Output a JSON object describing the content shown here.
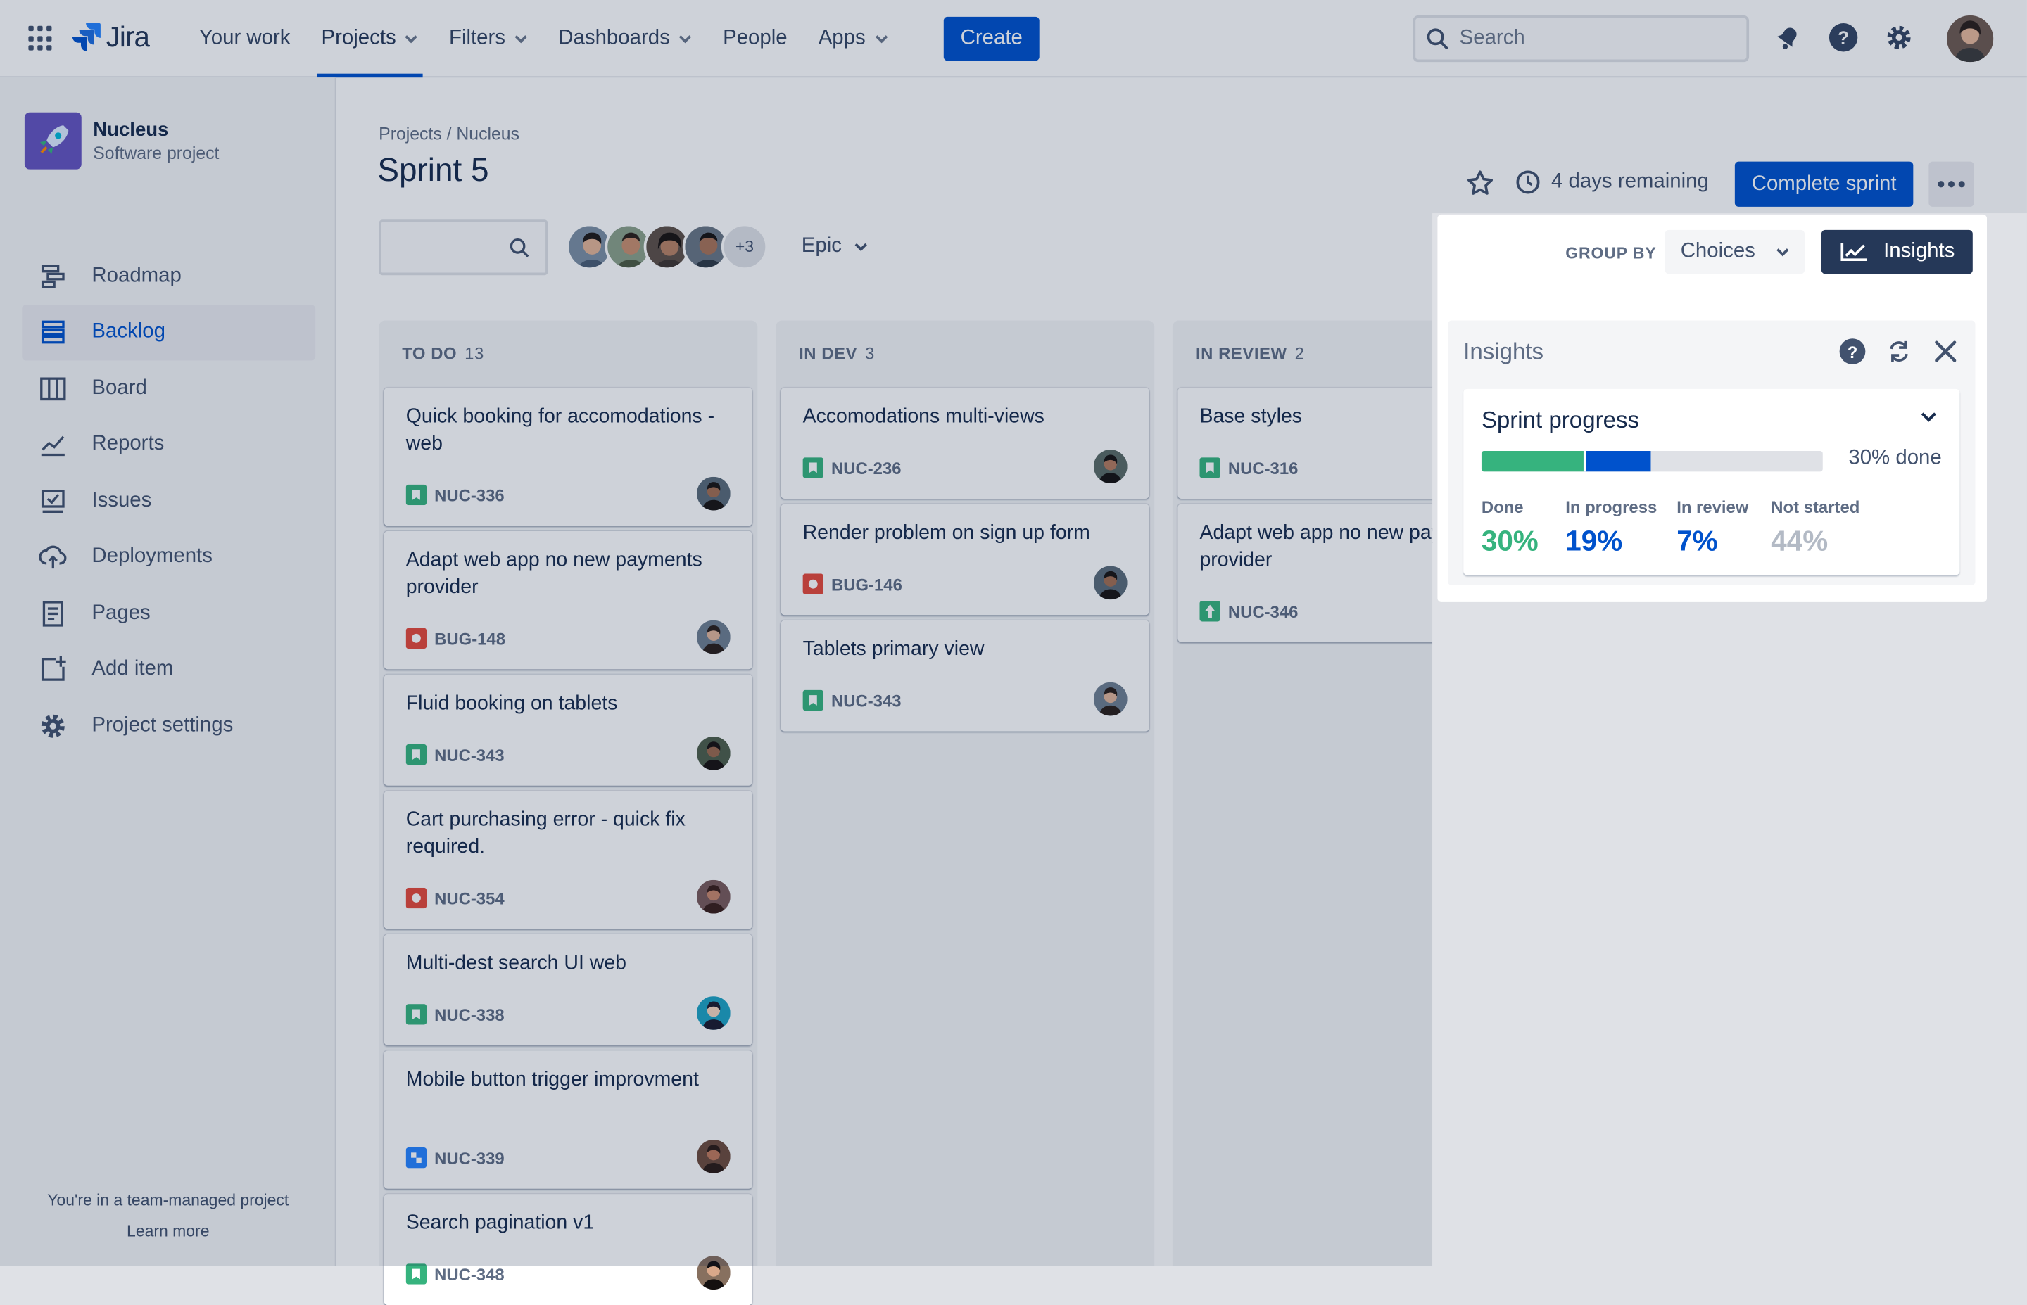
{
  "nav": {
    "logo": "Jira",
    "items": [
      {
        "label": "Your work",
        "dropdown": false,
        "active": false
      },
      {
        "label": "Projects",
        "dropdown": true,
        "active": true
      },
      {
        "label": "Filters",
        "dropdown": true,
        "active": false
      },
      {
        "label": "Dashboards",
        "dropdown": true,
        "active": false
      },
      {
        "label": "People",
        "dropdown": false,
        "active": false
      },
      {
        "label": "Apps",
        "dropdown": true,
        "active": false
      }
    ],
    "create_label": "Create",
    "search_placeholder": "Search",
    "icons": [
      "app-switcher-icon",
      "notifications-icon",
      "help-icon",
      "settings-icon",
      "profile-avatar"
    ]
  },
  "sidebar": {
    "project_name": "Nucleus",
    "project_type": "Software project",
    "items": [
      {
        "label": "Roadmap",
        "icon": "roadmap-icon"
      },
      {
        "label": "Backlog",
        "icon": "backlog-icon",
        "active": true
      },
      {
        "label": "Board",
        "icon": "board-icon"
      },
      {
        "label": "Reports",
        "icon": "reports-icon"
      },
      {
        "label": "Issues",
        "icon": "issues-icon"
      },
      {
        "label": "Deployments",
        "icon": "deployments-icon"
      },
      {
        "label": "Pages",
        "icon": "pages-icon"
      },
      {
        "label": "Add item",
        "icon": "add-item-icon"
      },
      {
        "label": "Project settings",
        "icon": "settings-icon"
      }
    ],
    "footer_text": "You're in a team-managed project",
    "footer_link": "Learn more"
  },
  "main": {
    "breadcrumb": "Projects / Nucleus",
    "title": "Sprint 5",
    "avatars_more": "+3",
    "epic_label": "Epic",
    "days_remaining": "4 days remaining",
    "complete_label": "Complete sprint"
  },
  "columns": [
    {
      "name": "TO DO",
      "count": "13",
      "cards": [
        {
          "title": "Quick booking for accomodations - web",
          "key": "NUC-336",
          "type": "story"
        },
        {
          "title": "Adapt web app no new payments provider",
          "key": "BUG-148",
          "type": "bug"
        },
        {
          "title": "Fluid booking on tablets",
          "key": "NUC-343",
          "type": "story"
        },
        {
          "title": "Cart purchasing error - quick fix required.",
          "key": "NUC-354",
          "type": "bug"
        },
        {
          "title": "Multi-dest search UI web",
          "key": "NUC-338",
          "type": "story"
        },
        {
          "title": "Mobile button trigger improvment",
          "key": "NUC-339",
          "type": "task"
        },
        {
          "title": "Search pagination v1",
          "key": "NUC-348",
          "type": "story"
        }
      ]
    },
    {
      "name": "IN DEV",
      "count": "3",
      "cards": [
        {
          "title": "Accomodations multi-views",
          "key": "NUC-236",
          "type": "story"
        },
        {
          "title": "Render problem on sign up form",
          "key": "BUG-146",
          "type": "bug"
        },
        {
          "title": "Tablets primary view",
          "key": "NUC-343",
          "type": "story"
        }
      ]
    },
    {
      "name": "IN REVIEW",
      "count": "2",
      "cards": [
        {
          "title": "Base styles",
          "key": "NUC-316",
          "type": "story"
        },
        {
          "title": "Adapt web app no new payments provider",
          "key": "NUC-346",
          "type": "improvement"
        }
      ]
    }
  ],
  "insights": {
    "group_by_label": "GROUP BY",
    "group_by_value": "Choices",
    "button_label": "Insights",
    "panel_title": "Insights",
    "sprint_progress": {
      "title": "Sprint progress",
      "done_text": "30% done",
      "stats": [
        {
          "label": "Done",
          "value": "30%",
          "fraction": 0.3,
          "color": "#36B37E"
        },
        {
          "label": "In progress",
          "value": "19%",
          "fraction": 0.19,
          "color": "#0052CC"
        },
        {
          "label": "In review",
          "value": "7%",
          "fraction": 0.07,
          "color": "#0052CC"
        },
        {
          "label": "Not started",
          "value": "44%",
          "fraction": 0.44,
          "color": "#B3BAC5"
        }
      ]
    }
  },
  "colors": {
    "brand": "#0052CC",
    "nav_dark": "#253858",
    "done": "#36B37E",
    "bug": "#E5493A",
    "story": "#36B37E",
    "task": "#2684FF"
  }
}
